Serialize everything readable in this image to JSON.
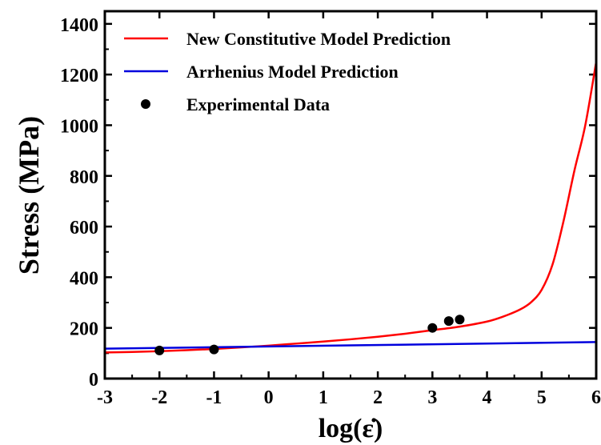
{
  "chart_data": {
    "type": "line",
    "title": "",
    "xlabel": "log(ε̇)",
    "ylabel": "Stress (MPa)",
    "xlim": [
      -3,
      6
    ],
    "ylim": [
      0,
      1450
    ],
    "x_ticks": [
      "-3",
      "-2",
      "-1",
      "0",
      "1",
      "2",
      "3",
      "4",
      "5",
      "6"
    ],
    "y_ticks": [
      "0",
      "200",
      "400",
      "600",
      "800",
      "1000",
      "1200",
      "1400"
    ],
    "grid": false,
    "legend_position": "top-left",
    "series": [
      {
        "name": "New Constitutive Model Prediction",
        "kind": "line",
        "color": "#ff0000",
        "x": [
          -3,
          -2.5,
          -2,
          -1.5,
          -1,
          -0.5,
          0,
          0.5,
          1,
          1.5,
          2,
          2.5,
          3,
          3.5,
          4,
          4.3,
          4.6,
          4.8,
          5,
          5.2,
          5.4,
          5.6,
          5.8,
          6
        ],
        "y": [
          103,
          105,
          108,
          112,
          117,
          123,
          130,
          138,
          146,
          155,
          165,
          177,
          191,
          205,
          225,
          245,
          272,
          300,
          350,
          450,
          620,
          820,
          1000,
          1250
        ]
      },
      {
        "name": "Arrhenius Model Prediction",
        "kind": "line",
        "color": "#0000dd",
        "x": [
          -3,
          6
        ],
        "y": [
          118,
          144
        ]
      },
      {
        "name": "Experimental Data",
        "kind": "scatter",
        "color": "#000000",
        "x": [
          -2,
          -1,
          3,
          3.3,
          3.5
        ],
        "y": [
          111,
          115,
          200,
          227,
          233
        ]
      }
    ]
  }
}
